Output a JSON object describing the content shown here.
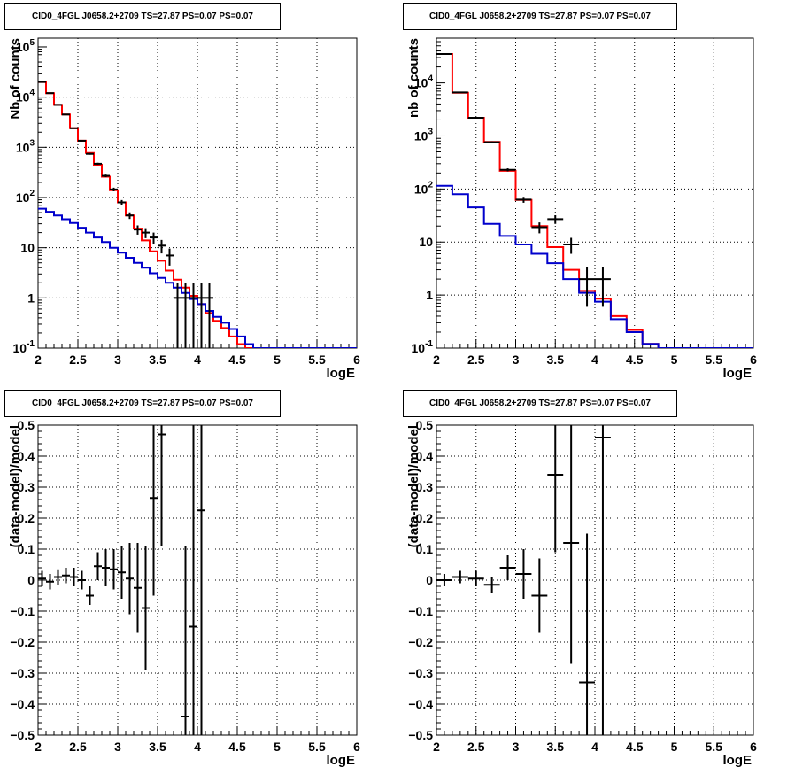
{
  "pads": [
    {
      "title": "CID0_4FGL J0658.2+2709 TS=27.87 PS=0.07 PS=0.07",
      "chart_data": {
        "type": "line",
        "xlabel": "logE",
        "ylabel": "Nb of counts",
        "xlim": [
          2,
          6
        ],
        "ylim": [
          0.1,
          150000
        ],
        "log_y": true,
        "grid": true,
        "xticks": [
          "2",
          "2.5",
          "3",
          "3.5",
          "4",
          "4.5",
          "5",
          "5.5",
          "6"
        ],
        "yticks": [
          {
            "v": 0.1,
            "base": "10",
            "exp": "-1"
          },
          {
            "v": 1,
            "label": "1"
          },
          {
            "v": 10,
            "label": "10"
          },
          {
            "v": 100,
            "base": "10",
            "exp": "2"
          },
          {
            "v": 1000,
            "base": "10",
            "exp": "3"
          },
          {
            "v": 10000,
            "base": "10",
            "exp": "4"
          },
          {
            "v": 100000,
            "base": "10",
            "exp": "5"
          }
        ],
        "bin_edges": [
          2.0,
          2.1,
          2.2,
          2.3,
          2.4,
          2.5,
          2.6,
          2.7,
          2.8,
          2.9,
          3.0,
          3.1,
          3.2,
          3.3,
          3.4,
          3.5,
          3.6,
          3.7,
          3.8,
          3.9,
          4.0,
          4.1,
          4.2,
          4.3,
          4.4,
          4.5,
          4.6,
          4.7,
          4.8,
          4.9,
          5.0,
          5.1,
          5.2,
          5.3,
          5.4,
          5.5,
          5.6,
          5.7,
          5.8,
          5.9,
          6.0
        ],
        "series": [
          {
            "color": "#ff0000",
            "values": [
              20000,
              12000,
              7000,
              4500,
              2400,
              1350,
              770,
              450,
              260,
              140,
              80,
              44,
              24,
              14,
              8.5,
              5.5,
              3.5,
              2.3,
              1.6,
              1.1,
              0.75,
              0.5,
              0.35,
              0.25,
              0.17,
              0.12,
              0.1,
              0.1,
              0.1,
              0.1,
              0.1,
              0.1,
              0.1,
              0.1,
              0.1,
              0.1,
              0.1,
              0.1,
              0.1,
              0.1
            ]
          },
          {
            "color": "#0000cc",
            "values": [
              60,
              52,
              44,
              37,
              31,
              25,
              20,
              16,
              13,
              10,
              8,
              6.3,
              5,
              4,
              3.1,
              2.5,
              2,
              1.6,
              1.25,
              0.95,
              0.75,
              0.55,
              0.42,
              0.32,
              0.24,
              0.17,
              0.12,
              0.1,
              0.1,
              0.1,
              0.1,
              0.1,
              0.1,
              0.1,
              0.1,
              0.1,
              0.1,
              0.1,
              0.1,
              0.1
            ]
          }
        ],
        "points": [
          {
            "x": 2.05,
            "y": 20000,
            "lo": 19860,
            "hi": 20140
          },
          {
            "x": 2.15,
            "y": 12000,
            "lo": 11890,
            "hi": 12110
          },
          {
            "x": 2.25,
            "y": 7000,
            "lo": 6916,
            "hi": 7084
          },
          {
            "x": 2.35,
            "y": 4500,
            "lo": 4433,
            "hi": 4567
          },
          {
            "x": 2.45,
            "y": 2400,
            "lo": 2351,
            "hi": 2449
          },
          {
            "x": 2.55,
            "y": 1350,
            "lo": 1313,
            "hi": 1387
          },
          {
            "x": 2.65,
            "y": 740,
            "lo": 713,
            "hi": 767
          },
          {
            "x": 2.75,
            "y": 470,
            "lo": 448,
            "hi": 492
          },
          {
            "x": 2.85,
            "y": 270,
            "lo": 254,
            "hi": 286
          },
          {
            "x": 2.95,
            "y": 145,
            "lo": 133,
            "hi": 157
          },
          {
            "x": 3.05,
            "y": 80,
            "lo": 71,
            "hi": 89
          },
          {
            "x": 3.15,
            "y": 44,
            "lo": 37.4,
            "hi": 50.6
          },
          {
            "x": 3.25,
            "y": 23,
            "lo": 18.2,
            "hi": 27.8
          },
          {
            "x": 3.35,
            "y": 20,
            "lo": 15.5,
            "hi": 24.5
          },
          {
            "x": 3.45,
            "y": 16,
            "lo": 12,
            "hi": 20
          },
          {
            "x": 3.55,
            "y": 11,
            "lo": 7.7,
            "hi": 14.3
          },
          {
            "x": 3.65,
            "y": 7,
            "lo": 4.4,
            "hi": 9.6
          },
          {
            "x": 3.75,
            "y": 1,
            "lo": 0.1,
            "hi": 2
          },
          {
            "x": 3.85,
            "y": 1,
            "lo": 0.1,
            "hi": 2
          },
          {
            "x": 3.95,
            "y": 1,
            "lo": 0.1,
            "hi": 2
          },
          {
            "x": 4.05,
            "y": 1,
            "lo": 0.1,
            "hi": 2
          },
          {
            "x": 4.15,
            "y": 1,
            "lo": 0.1,
            "hi": 2
          }
        ]
      }
    },
    {
      "title": "CID0_4FGL J0658.2+2709 TS=27.87 PS=0.07 PS=0.07",
      "chart_data": {
        "type": "line",
        "xlabel": "logE",
        "ylabel": "nb of counts",
        "xlim": [
          2,
          6
        ],
        "ylim": [
          0.1,
          70000
        ],
        "log_y": true,
        "grid": true,
        "xticks": [
          "2",
          "2.5",
          "3",
          "3.5",
          "4",
          "4.5",
          "5",
          "5.5",
          "6"
        ],
        "yticks": [
          {
            "v": 0.1,
            "base": "10",
            "exp": "-1"
          },
          {
            "v": 1,
            "label": "1"
          },
          {
            "v": 10,
            "label": "10"
          },
          {
            "v": 100,
            "base": "10",
            "exp": "2"
          },
          {
            "v": 1000,
            "base": "10",
            "exp": "3"
          },
          {
            "v": 10000,
            "base": "10",
            "exp": "4"
          }
        ],
        "bin_edges": [
          2.0,
          2.2,
          2.4,
          2.6,
          2.8,
          3.0,
          3.2,
          3.4,
          3.6,
          3.8,
          4.0,
          4.2,
          4.4,
          4.6,
          4.8,
          5.0,
          5.2,
          5.4,
          5.6,
          5.8,
          6.0
        ],
        "series": [
          {
            "color": "#ff0000",
            "values": [
              35000,
              6500,
              2200,
              770,
              220,
              62,
              20,
              8,
              3,
              1.2,
              0.85,
              0.4,
              0.22,
              0.12,
              0.1,
              0.1,
              0.1,
              0.1,
              0.1,
              0.1
            ]
          },
          {
            "color": "#0000cc",
            "values": [
              115,
              80,
              45,
              22,
              13,
              9,
              6,
              4,
              2,
              1.1,
              0.75,
              0.35,
              0.2,
              0.12,
              0.1,
              0.1,
              0.1,
              0.1,
              0.1,
              0.1
            ]
          }
        ],
        "points": [
          {
            "x": 2.1,
            "y": 35000,
            "lo": 34810,
            "hi": 35190
          },
          {
            "x": 2.3,
            "y": 6600,
            "lo": 6520,
            "hi": 6680
          },
          {
            "x": 2.5,
            "y": 2200,
            "lo": 2150,
            "hi": 2250
          },
          {
            "x": 2.7,
            "y": 760,
            "lo": 732,
            "hi": 788
          },
          {
            "x": 2.9,
            "y": 230,
            "lo": 215,
            "hi": 245
          },
          {
            "x": 3.1,
            "y": 63,
            "lo": 55,
            "hi": 71
          },
          {
            "x": 3.3,
            "y": 19,
            "lo": 14.6,
            "hi": 23.4
          },
          {
            "x": 3.5,
            "y": 27,
            "lo": 22,
            "hi": 32
          },
          {
            "x": 3.7,
            "y": 9,
            "lo": 6,
            "hi": 12
          },
          {
            "x": 3.9,
            "y": 2,
            "lo": 0.6,
            "hi": 3.4
          },
          {
            "x": 4.1,
            "y": 2,
            "lo": 0.6,
            "hi": 3.4
          }
        ]
      }
    },
    {
      "title": "CID0_4FGL J0658.2+2709 TS=27.87 PS=0.07 PS=0.07",
      "chart_data": {
        "type": "scatter",
        "xlabel": "logE",
        "ylabel": "(data-model)/model",
        "xlim": [
          2,
          6
        ],
        "ylim": [
          -0.5,
          0.5
        ],
        "log_y": false,
        "grid": true,
        "xticks": [
          "2",
          "2.5",
          "3",
          "3.5",
          "4",
          "4.5",
          "5",
          "5.5",
          "6"
        ],
        "yticks": [
          {
            "v": -0.5,
            "label": "−0.5"
          },
          {
            "v": -0.4,
            "label": "−0.4"
          },
          {
            "v": -0.3,
            "label": "−0.3"
          },
          {
            "v": -0.2,
            "label": "−0.2"
          },
          {
            "v": -0.1,
            "label": "−0.1"
          },
          {
            "v": 0,
            "label": "0"
          },
          {
            "v": 0.1,
            "label": "0.1"
          },
          {
            "v": 0.2,
            "label": "0.2"
          },
          {
            "v": 0.3,
            "label": "0.3"
          },
          {
            "v": 0.4,
            "label": "0.4"
          },
          {
            "v": 0.5,
            "label": "0.5"
          }
        ],
        "xerr": 0.05,
        "points": [
          {
            "x": 2.05,
            "y": 0.005,
            "lo": -0.02,
            "hi": 0.03
          },
          {
            "x": 2.15,
            "y": -0.005,
            "lo": -0.03,
            "hi": 0.02
          },
          {
            "x": 2.25,
            "y": 0.01,
            "lo": -0.015,
            "hi": 0.035
          },
          {
            "x": 2.35,
            "y": 0.015,
            "lo": -0.01,
            "hi": 0.04
          },
          {
            "x": 2.45,
            "y": 0.01,
            "lo": -0.02,
            "hi": 0.04
          },
          {
            "x": 2.55,
            "y": 0.0,
            "lo": -0.03,
            "hi": 0.03
          },
          {
            "x": 2.65,
            "y": -0.05,
            "lo": -0.08,
            "hi": -0.02
          },
          {
            "x": 2.75,
            "y": 0.045,
            "lo": 0.0,
            "hi": 0.09
          },
          {
            "x": 2.85,
            "y": 0.04,
            "lo": -0.02,
            "hi": 0.1
          },
          {
            "x": 2.95,
            "y": 0.035,
            "lo": -0.03,
            "hi": 0.1
          },
          {
            "x": 3.05,
            "y": 0.025,
            "lo": -0.06,
            "hi": 0.11
          },
          {
            "x": 3.15,
            "y": 0.005,
            "lo": -0.11,
            "hi": 0.12
          },
          {
            "x": 3.25,
            "y": -0.025,
            "lo": -0.17,
            "hi": 0.12
          },
          {
            "x": 3.35,
            "y": -0.09,
            "lo": -0.29,
            "hi": 0.11
          },
          {
            "x": 3.45,
            "y": 0.265,
            "lo": -0.05,
            "hi": 0.5
          },
          {
            "x": 3.55,
            "y": 0.47,
            "lo": 0.11,
            "hi": 0.5
          },
          {
            "x": 3.85,
            "y": -0.44,
            "lo": -0.5,
            "hi": 0.11
          },
          {
            "x": 3.95,
            "y": -0.15,
            "lo": -0.5,
            "hi": 0.5
          },
          {
            "x": 4.05,
            "y": 0.225,
            "lo": -0.5,
            "hi": 0.5
          }
        ]
      }
    },
    {
      "title": "CID0_4FGL J0658.2+2709 TS=27.87 PS=0.07 PS=0.07",
      "chart_data": {
        "type": "scatter",
        "xlabel": "logE",
        "ylabel": "(data-model)/model",
        "xlim": [
          2,
          6
        ],
        "ylim": [
          -0.5,
          0.5
        ],
        "log_y": false,
        "grid": true,
        "xticks": [
          "2",
          "2.5",
          "3",
          "3.5",
          "4",
          "4.5",
          "5",
          "5.5",
          "6"
        ],
        "yticks": [
          {
            "v": -0.5,
            "label": "−0.5"
          },
          {
            "v": -0.4,
            "label": "−0.4"
          },
          {
            "v": -0.3,
            "label": "−0.3"
          },
          {
            "v": -0.2,
            "label": "−0.2"
          },
          {
            "v": -0.1,
            "label": "−0.1"
          },
          {
            "v": 0,
            "label": "0"
          },
          {
            "v": 0.1,
            "label": "0.1"
          },
          {
            "v": 0.2,
            "label": "0.2"
          },
          {
            "v": 0.3,
            "label": "0.3"
          },
          {
            "v": 0.4,
            "label": "0.4"
          },
          {
            "v": 0.5,
            "label": "0.5"
          }
        ],
        "xerr": 0.1,
        "points": [
          {
            "x": 2.1,
            "y": 0.0,
            "lo": -0.02,
            "hi": 0.02
          },
          {
            "x": 2.3,
            "y": 0.01,
            "lo": -0.01,
            "hi": 0.03
          },
          {
            "x": 2.5,
            "y": 0.005,
            "lo": -0.02,
            "hi": 0.03
          },
          {
            "x": 2.7,
            "y": -0.015,
            "lo": -0.04,
            "hi": 0.01
          },
          {
            "x": 2.9,
            "y": 0.04,
            "lo": 0.0,
            "hi": 0.08
          },
          {
            "x": 3.1,
            "y": 0.02,
            "lo": -0.06,
            "hi": 0.1
          },
          {
            "x": 3.3,
            "y": -0.05,
            "lo": -0.17,
            "hi": 0.07
          },
          {
            "x": 3.5,
            "y": 0.34,
            "lo": 0.09,
            "hi": 0.5
          },
          {
            "x": 3.7,
            "y": 0.12,
            "lo": -0.27,
            "hi": 0.5
          },
          {
            "x": 3.9,
            "y": -0.33,
            "lo": -0.5,
            "hi": 0.15
          },
          {
            "x": 4.1,
            "y": 0.46,
            "lo": -0.5,
            "hi": 0.5
          }
        ]
      }
    }
  ]
}
